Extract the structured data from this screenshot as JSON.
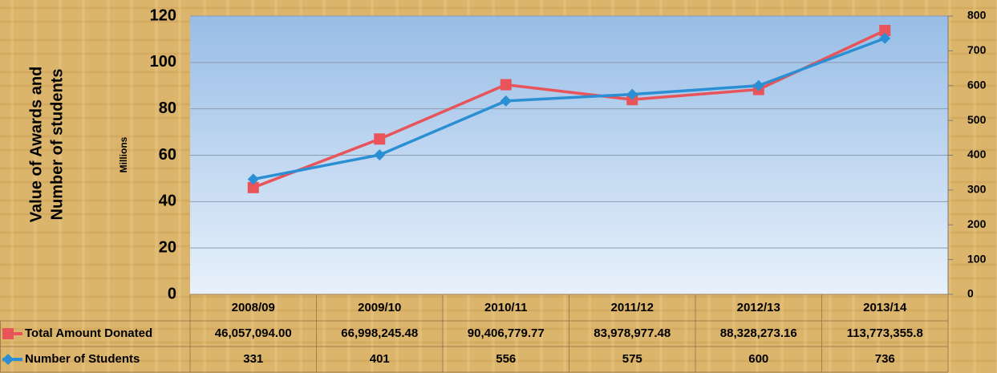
{
  "chart_data": {
    "type": "line",
    "y_label_lines": [
      "Value of Awards  and",
      "Number of students"
    ],
    "y_unit_label": "Millions",
    "categories": [
      "2008/09",
      "2009/10",
      "2010/11",
      "2011/12",
      "2012/13",
      "2013/14"
    ],
    "series": [
      {
        "name": "Total Amount Donated",
        "color": "#e8545a",
        "marker": "square",
        "values": [
          46057094.0,
          66998245.48,
          90406779.77,
          83978977.48,
          88328273.16,
          113773355.8
        ],
        "value_labels": [
          "46,057,094.00",
          "66,998,245.48",
          "90,406,779.77",
          "83,978,977.48",
          "88,328,273.16",
          "113,773,355.8"
        ]
      },
      {
        "name": "Number of Students",
        "color": "#2b8fd3",
        "marker": "diamond",
        "axis": "y2",
        "values": [
          331,
          401,
          556,
          575,
          600,
          736
        ]
      }
    ],
    "ylim": [
      0,
      120000000
    ],
    "yticks": [
      {
        "value": 0,
        "label": "0"
      },
      {
        "value": 20000000,
        "label": "20"
      },
      {
        "value": 40000000,
        "label": "40"
      },
      {
        "value": 60000000,
        "label": "60"
      },
      {
        "value": 80000000,
        "label": "80"
      },
      {
        "value": 100000000,
        "label": "100"
      },
      {
        "value": 120000000,
        "label": "120"
      }
    ],
    "y2lim": [
      0,
      800
    ],
    "y2ticks": [
      0,
      100,
      200,
      300,
      400,
      500,
      600,
      700,
      800
    ],
    "grid": true
  }
}
